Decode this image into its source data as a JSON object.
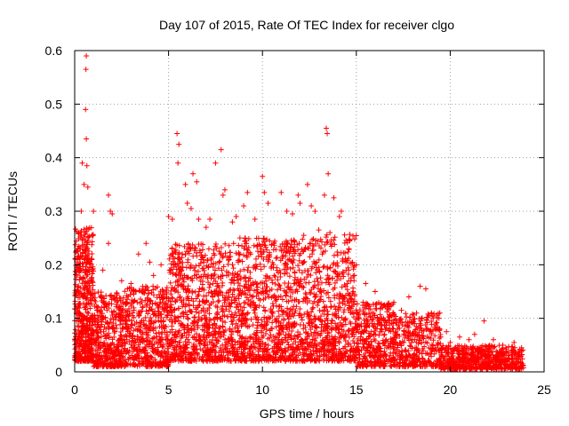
{
  "chart_data": {
    "type": "scatter",
    "title": "Day 107 of 2015, Rate Of TEC Index for receiver clgo",
    "xlabel": "GPS time / hours",
    "ylabel": "ROTI / TECUs",
    "xlim": [
      0,
      25
    ],
    "ylim": [
      0,
      0.6
    ],
    "x_ticks": [
      0,
      5,
      10,
      15,
      20,
      25
    ],
    "y_ticks": [
      0,
      0.1,
      0.2,
      0.3,
      0.4,
      0.5,
      0.6
    ],
    "x_tick_labels": [
      "0",
      "5",
      "10",
      "15",
      "20",
      "25"
    ],
    "y_tick_labels": [
      "0",
      "0.1",
      "0.2",
      "0.3",
      "0.4",
      "0.5",
      "0.6"
    ],
    "grid": true,
    "marker": "+",
    "color": "#ff0000",
    "series": [
      {
        "points": [
          [
            0.62,
            0.59
          ],
          [
            0.6,
            0.565
          ],
          [
            0.58,
            0.49
          ],
          [
            0.62,
            0.435
          ],
          [
            0.65,
            0.385
          ],
          [
            0.4,
            0.39
          ],
          [
            0.5,
            0.35
          ],
          [
            0.7,
            0.345
          ],
          [
            0.35,
            0.3
          ],
          [
            0.2,
            0.26
          ],
          [
            1.0,
            0.3
          ],
          [
            1.8,
            0.33
          ],
          [
            1.9,
            0.3
          ],
          [
            2.0,
            0.295
          ],
          [
            1.8,
            0.24
          ],
          [
            3.4,
            0.22
          ],
          [
            3.8,
            0.24
          ],
          [
            4.0,
            0.205
          ],
          [
            4.6,
            0.2
          ],
          [
            5.0,
            0.29
          ],
          [
            5.2,
            0.285
          ],
          [
            5.45,
            0.445
          ],
          [
            5.55,
            0.425
          ],
          [
            5.5,
            0.39
          ],
          [
            5.9,
            0.35
          ],
          [
            6.0,
            0.315
          ],
          [
            6.2,
            0.305
          ],
          [
            6.3,
            0.37
          ],
          [
            6.5,
            0.355
          ],
          [
            6.6,
            0.285
          ],
          [
            7.0,
            0.27
          ],
          [
            7.2,
            0.285
          ],
          [
            7.5,
            0.39
          ],
          [
            7.8,
            0.415
          ],
          [
            7.9,
            0.33
          ],
          [
            8.0,
            0.34
          ],
          [
            8.4,
            0.28
          ],
          [
            8.6,
            0.29
          ],
          [
            9.0,
            0.31
          ],
          [
            9.2,
            0.335
          ],
          [
            9.6,
            0.285
          ],
          [
            10.0,
            0.365
          ],
          [
            10.1,
            0.335
          ],
          [
            10.3,
            0.315
          ],
          [
            11.0,
            0.335
          ],
          [
            11.3,
            0.3
          ],
          [
            11.6,
            0.295
          ],
          [
            11.9,
            0.33
          ],
          [
            12.0,
            0.315
          ],
          [
            12.4,
            0.35
          ],
          [
            12.6,
            0.31
          ],
          [
            12.8,
            0.3
          ],
          [
            13.0,
            0.265
          ],
          [
            13.3,
            0.33
          ],
          [
            13.4,
            0.455
          ],
          [
            13.45,
            0.445
          ],
          [
            13.5,
            0.37
          ],
          [
            13.8,
            0.325
          ],
          [
            14.1,
            0.29
          ],
          [
            14.2,
            0.3
          ],
          [
            14.6,
            0.23
          ],
          [
            15.0,
            0.2
          ],
          [
            15.5,
            0.165
          ],
          [
            16.0,
            0.15
          ],
          [
            16.5,
            0.125
          ],
          [
            17.0,
            0.13
          ],
          [
            17.4,
            0.115
          ],
          [
            17.8,
            0.14
          ],
          [
            18.4,
            0.16
          ],
          [
            18.7,
            0.155
          ],
          [
            19.0,
            0.11
          ],
          [
            19.4,
            0.1
          ],
          [
            19.8,
            0.075
          ],
          [
            20.5,
            0.065
          ],
          [
            21.0,
            0.06
          ],
          [
            21.3,
            0.07
          ],
          [
            21.8,
            0.095
          ],
          [
            22.3,
            0.06
          ],
          [
            22.8,
            0.05
          ],
          [
            23.4,
            0.055
          ],
          [
            23.8,
            0.045
          ],
          [
            1.5,
            0.19
          ],
          [
            2.5,
            0.17
          ],
          [
            3.0,
            0.165
          ],
          [
            4.2,
            0.18
          ],
          [
            6.8,
            0.215
          ],
          [
            8.8,
            0.25
          ],
          [
            10.6,
            0.24
          ],
          [
            12.2,
            0.255
          ],
          [
            14.9,
            0.18
          ],
          [
            16.2,
            0.09
          ],
          [
            17.2,
            0.08
          ],
          [
            18.2,
            0.085
          ],
          [
            20.0,
            0.055
          ],
          [
            22.0,
            0.04
          ],
          [
            23.0,
            0.035
          ]
        ]
      }
    ],
    "dense_bands": [
      {
        "x0": 0.0,
        "x1": 1.0,
        "lo": 0.02,
        "hi": 0.27,
        "n": 520
      },
      {
        "x0": 1.0,
        "x1": 2.5,
        "lo": 0.01,
        "hi": 0.15,
        "n": 380
      },
      {
        "x0": 2.5,
        "x1": 5.0,
        "lo": 0.01,
        "hi": 0.16,
        "n": 520
      },
      {
        "x0": 5.0,
        "x1": 7.0,
        "lo": 0.02,
        "hi": 0.24,
        "n": 480
      },
      {
        "x0": 7.0,
        "x1": 9.0,
        "lo": 0.02,
        "hi": 0.24,
        "n": 460
      },
      {
        "x0": 9.0,
        "x1": 11.0,
        "lo": 0.02,
        "hi": 0.25,
        "n": 460
      },
      {
        "x0": 11.0,
        "x1": 13.0,
        "lo": 0.02,
        "hi": 0.25,
        "n": 460
      },
      {
        "x0": 13.0,
        "x1": 15.0,
        "lo": 0.02,
        "hi": 0.26,
        "n": 460
      },
      {
        "x0": 15.0,
        "x1": 17.0,
        "lo": 0.01,
        "hi": 0.13,
        "n": 380
      },
      {
        "x0": 17.0,
        "x1": 19.5,
        "lo": 0.01,
        "hi": 0.11,
        "n": 360
      },
      {
        "x0": 19.5,
        "x1": 21.5,
        "lo": 0.005,
        "hi": 0.05,
        "n": 300
      },
      {
        "x0": 21.5,
        "x1": 23.9,
        "lo": 0.005,
        "hi": 0.05,
        "n": 320
      }
    ]
  }
}
